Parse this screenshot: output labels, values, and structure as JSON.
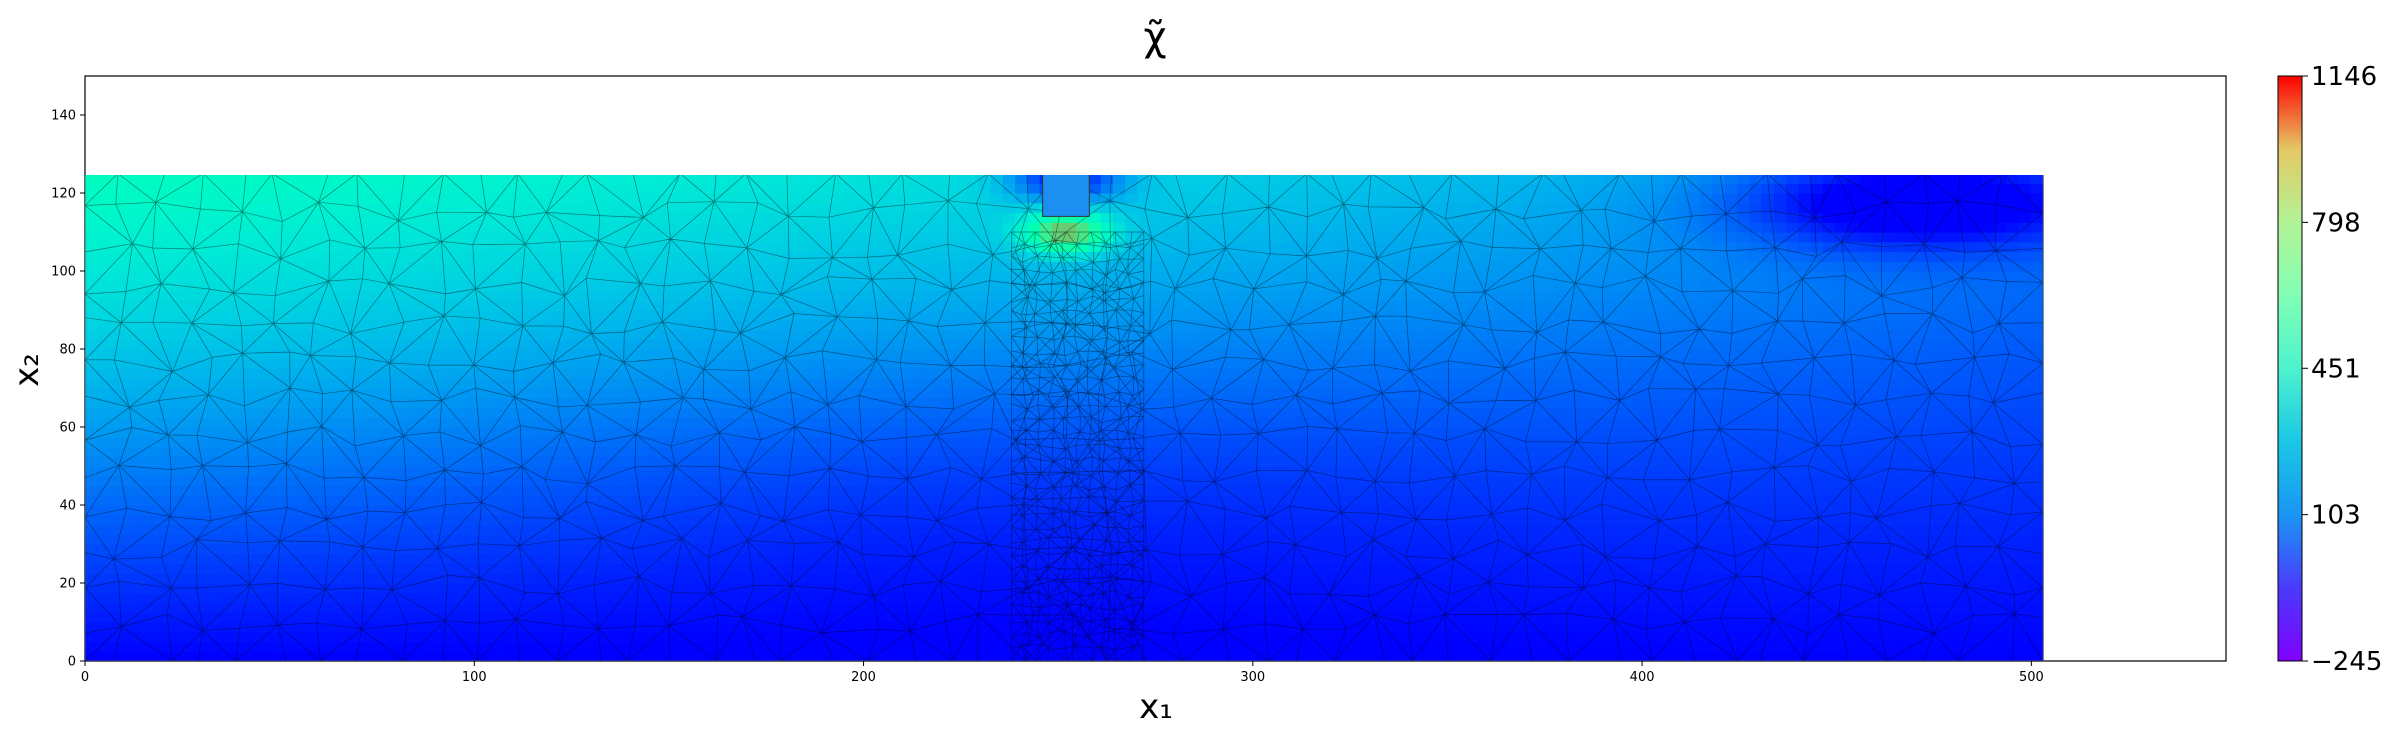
{
  "chart_data": {
    "type": "heatmap",
    "subtype": "triangulated-mesh-field",
    "title": "χ̃",
    "xlabel": "x₁",
    "ylabel": "x₂",
    "xlim": [
      0,
      550
    ],
    "ylim": [
      0,
      150
    ],
    "x_ticks": [
      "0",
      "100",
      "200",
      "300",
      "400",
      "500"
    ],
    "y_ticks": [
      "0",
      "20",
      "40",
      "60",
      "80",
      "100",
      "120",
      "140"
    ],
    "domain": {
      "x": [
        0,
        503
      ],
      "y": [
        0,
        125
      ]
    },
    "refined_zone": {
      "x": [
        238,
        272
      ],
      "y": [
        0,
        110
      ]
    },
    "excavation": {
      "x": [
        246,
        258
      ],
      "y": [
        114,
        125
      ]
    },
    "colormap": "rainbow",
    "colorbar": {
      "min": -245,
      "max": 1146,
      "tick_values": [
        -245,
        103,
        451,
        798,
        1146
      ],
      "tick_labels": [
        "−245",
        "103",
        "451",
        "798",
        "1146"
      ]
    },
    "field_description": "values increase with height from about -245 at bottom to about 500 near top-left; hot spot up to 1146 just below excavation tip; low values near excavation top and top-right",
    "grid": false,
    "legend": "colorbar-right"
  }
}
